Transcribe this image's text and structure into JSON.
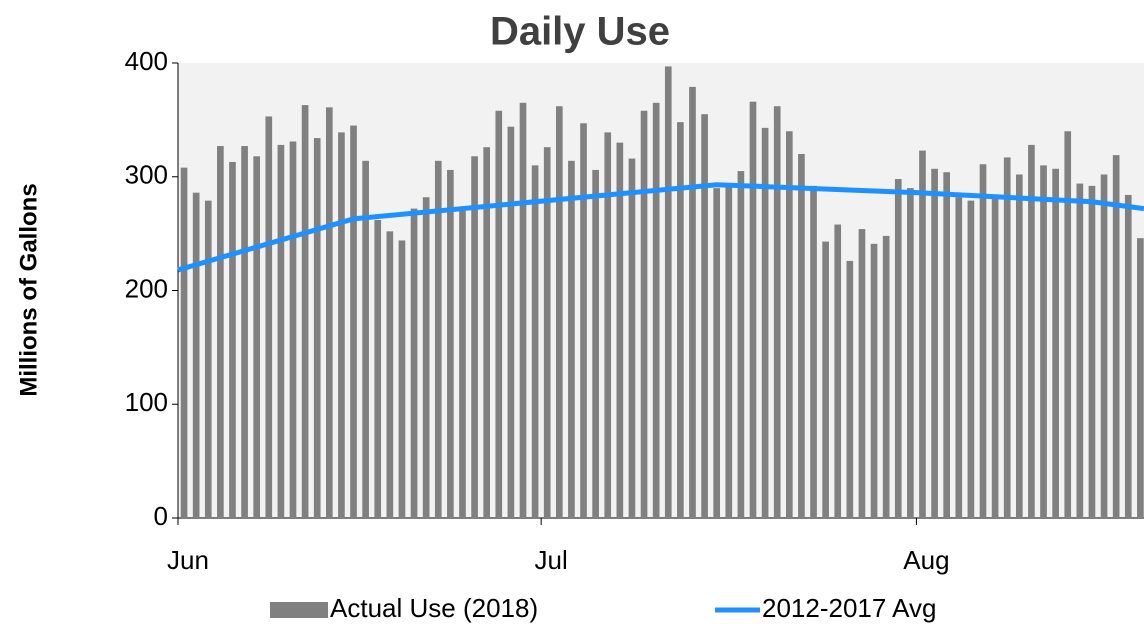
{
  "chart_data": {
    "type": "bar",
    "title": "Daily Use",
    "y_label": "Millions of Gallons",
    "xlim": [
      0,
      79.8
    ],
    "ylim": [
      0,
      400
    ],
    "yticks": [
      0,
      100,
      200,
      300,
      400
    ],
    "xticks": [
      {
        "value": 0,
        "label": "Jun"
      },
      {
        "value": 30,
        "label": "Jul"
      },
      {
        "value": 61,
        "label": "Aug"
      }
    ],
    "series": [
      {
        "name": "Actual Use (2018)",
        "type": "bar",
        "color": "#808080",
        "x": [
          0.5,
          1.5,
          2.5,
          3.5,
          4.5,
          5.5,
          6.5,
          7.5,
          8.5,
          9.5,
          10.5,
          11.5,
          12.5,
          13.5,
          14.5,
          15.5,
          16.5,
          17.5,
          18.5,
          19.5,
          20.5,
          21.5,
          22.5,
          23.5,
          24.5,
          25.5,
          26.5,
          27.5,
          28.5,
          29.5,
          30.5,
          31.5,
          32.5,
          33.5,
          34.5,
          35.5,
          36.5,
          37.5,
          38.5,
          39.5,
          40.5,
          41.5,
          42.5,
          43.5,
          44.5,
          45.5,
          46.5,
          47.5,
          48.5,
          49.5,
          50.5,
          51.5,
          52.5,
          53.5,
          54.5,
          55.5,
          56.5,
          57.5,
          58.5,
          59.5,
          60.5,
          61.5,
          62.5,
          63.5,
          64.5,
          65.5,
          66.5,
          67.5,
          68.5,
          69.5,
          70.5,
          71.5,
          72.5,
          73.5,
          74.5,
          75.5,
          76.5,
          77.5,
          78.5,
          79.5
        ],
        "values": [
          308,
          286,
          279,
          327,
          313,
          327,
          318,
          353,
          328,
          331,
          363,
          334,
          361,
          339,
          345,
          314,
          262,
          252,
          244,
          272,
          282,
          314,
          306,
          270,
          318,
          326,
          358,
          344,
          365,
          310,
          326,
          362,
          314,
          347,
          306,
          339,
          330,
          316,
          358,
          365,
          397,
          348,
          379,
          355,
          290,
          292,
          305,
          366,
          343,
          362,
          340,
          320,
          292,
          243,
          258,
          226,
          254,
          241,
          248,
          298,
          290,
          323,
          307,
          304,
          282,
          279,
          311,
          281,
          317,
          302,
          328,
          310,
          307,
          340,
          294,
          292,
          302,
          319,
          284,
          246
        ]
      },
      {
        "name": "2012-2017 Avg",
        "type": "line",
        "color": "#1e90ff",
        "x": [
          0,
          14.5,
          44.5,
          61,
          75.5,
          79.8
        ],
        "values": [
          218,
          263,
          293,
          286,
          278,
          272
        ]
      }
    ]
  }
}
